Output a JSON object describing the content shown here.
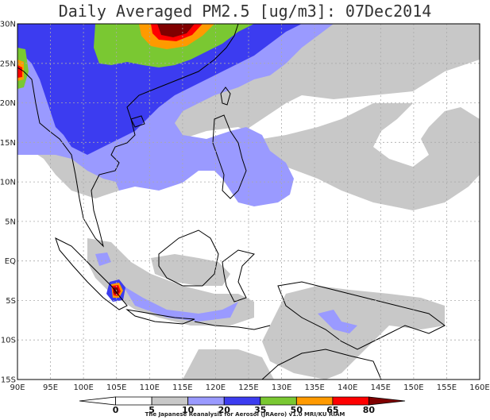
{
  "title": "Daily Averaged PM2.5 [ug/m3]: 07Dec2014",
  "credit": "The Japanese Reanalysis for Aerosol (JRAero) v1.0 MRI/KU RIAM",
  "lon_ticks": [
    "90E",
    "95E",
    "100E",
    "105E",
    "110E",
    "115E",
    "120E",
    "125E",
    "130E",
    "135E",
    "140E",
    "145E",
    "150E",
    "155E",
    "160E"
  ],
  "lat_ticks": [
    "30N",
    "25N",
    "20N",
    "15N",
    "10N",
    "5N",
    "EQ",
    "5S",
    "10S",
    "15S"
  ],
  "colorbar": {
    "labels": [
      "0",
      "5",
      "10",
      "20",
      "35",
      "50",
      "65",
      "80"
    ],
    "colors": [
      "#ffffff",
      "#ffffff",
      "#c8c8c8",
      "#9a9aff",
      "#3c3cf0",
      "#7ac832",
      "#ff9a00",
      "#ff0000",
      "#800000"
    ]
  },
  "chart_data": {
    "type": "map",
    "variable": "Daily Averaged PM2.5",
    "units": "ug/m3",
    "date": "07Dec2014",
    "lon_range": [
      90,
      160
    ],
    "lat_range": [
      -15,
      30
    ],
    "levels": [
      0,
      5,
      10,
      20,
      35,
      50,
      65,
      80
    ]
  }
}
